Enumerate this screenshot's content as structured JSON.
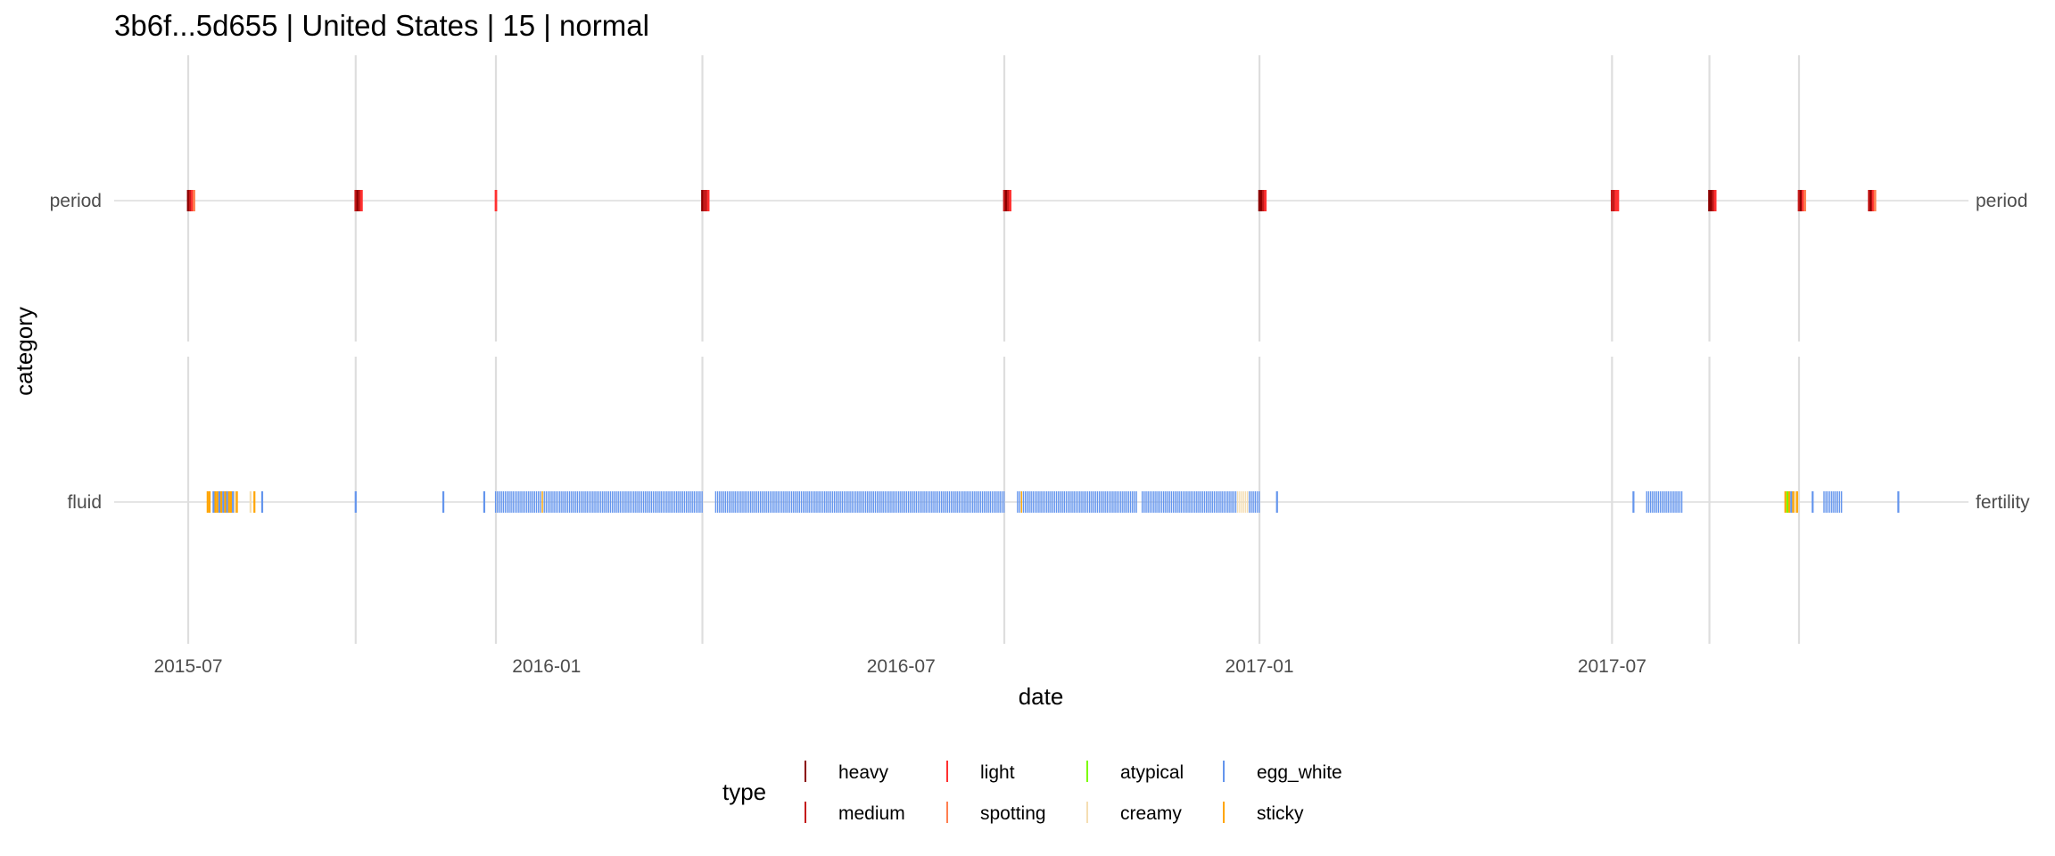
{
  "chart_data": {
    "type": "strip",
    "title": "3b6f...5d655 | United States | 15 | normal",
    "xlabel": "date",
    "ylabel": "category",
    "x_ticks": [
      "2015-07",
      "2016-01",
      "2016-07",
      "2017-01",
      "2017-07"
    ],
    "x_range": [
      "2015-05-24",
      "2017-12-31"
    ],
    "facets": [
      {
        "name": "period",
        "left_label": "period",
        "right_label": "period"
      },
      {
        "name": "fertility",
        "left_label": "fluid",
        "right_label": "fertility"
      }
    ],
    "cycle_starts": [
      "2015-07-01",
      "2015-09-25",
      "2015-12-06",
      "2016-03-21",
      "2016-08-23",
      "2017-01-01",
      "2017-07-01",
      "2017-08-20",
      "2017-10-05"
    ],
    "legend": {
      "title": "type",
      "position": "bottom",
      "entries": [
        {
          "name": "heavy",
          "color": "#8b0000"
        },
        {
          "name": "medium",
          "color": "#c41a1a"
        },
        {
          "name": "light",
          "color": "#ff3030"
        },
        {
          "name": "spotting",
          "color": "#ff7f50"
        },
        {
          "name": "atypical",
          "color": "#7cfc00"
        },
        {
          "name": "creamy",
          "color": "#f5deb3"
        },
        {
          "name": "egg_white",
          "color": "#6495ed"
        },
        {
          "name": "sticky",
          "color": "#ffa500"
        }
      ]
    },
    "period_runs": [
      {
        "start": "2015-07-01",
        "types": [
          "heavy",
          "medium",
          "light",
          "spotting"
        ]
      },
      {
        "start": "2015-09-25",
        "types": [
          "medium",
          "heavy",
          "medium",
          "light"
        ]
      },
      {
        "start": "2015-12-06",
        "types": [
          "light"
        ]
      },
      {
        "start": "2016-03-21",
        "types": [
          "heavy",
          "medium",
          "medium",
          "light"
        ]
      },
      {
        "start": "2016-08-23",
        "types": [
          "medium",
          "heavy",
          "medium",
          "light"
        ]
      },
      {
        "start": "2017-01-01",
        "types": [
          "heavy",
          "heavy",
          "medium",
          "light"
        ]
      },
      {
        "start": "2017-07-01",
        "types": [
          "medium",
          "medium",
          "light",
          "light"
        ]
      },
      {
        "start": "2017-08-20",
        "types": [
          "heavy",
          "heavy",
          "medium",
          "light"
        ]
      },
      {
        "start": "2017-10-05",
        "types": [
          "medium",
          "heavy",
          "light",
          "spotting"
        ]
      },
      {
        "start": "2017-11-10",
        "types": [
          "medium",
          "heavy",
          "light",
          "spotting"
        ]
      }
    ],
    "fluid_obs": [
      {
        "date": "2015-07-11",
        "type": "sticky"
      },
      {
        "date": "2015-07-12",
        "type": "sticky"
      },
      {
        "date": "2015-07-14",
        "type": "egg_white"
      },
      {
        "date": "2015-07-15",
        "type": "sticky"
      },
      {
        "date": "2015-07-16",
        "type": "sticky"
      },
      {
        "date": "2015-07-17",
        "type": "egg_white"
      },
      {
        "date": "2015-07-18",
        "type": "sticky"
      },
      {
        "date": "2015-07-19",
        "type": "egg_white"
      },
      {
        "date": "2015-07-20",
        "type": "sticky"
      },
      {
        "date": "2015-07-21",
        "type": "egg_white"
      },
      {
        "date": "2015-07-22",
        "type": "sticky"
      },
      {
        "date": "2015-07-23",
        "type": "sticky"
      },
      {
        "date": "2015-07-24",
        "type": "egg_white"
      },
      {
        "date": "2015-07-25",
        "type": "creamy"
      },
      {
        "date": "2015-07-26",
        "type": "sticky"
      },
      {
        "date": "2015-08-02",
        "type": "creamy"
      },
      {
        "date": "2015-08-04",
        "type": "sticky"
      },
      {
        "date": "2015-08-08",
        "type": "egg_white"
      },
      {
        "date": "2015-09-25",
        "type": "egg_white"
      },
      {
        "date": "2015-11-09",
        "type": "egg_white"
      },
      {
        "date": "2015-11-30",
        "type": "egg_white"
      },
      {
        "range": [
          "2015-12-06",
          "2016-03-21"
        ],
        "type": "egg_white",
        "sticky_dates": [
          "2015-12-30"
        ]
      },
      {
        "range": [
          "2016-03-28",
          "2016-08-23"
        ],
        "type": "egg_white"
      },
      {
        "range": [
          "2016-08-30",
          "2016-10-30"
        ],
        "type": "egg_white",
        "sticky_dates": [
          "2016-09-01"
        ]
      },
      {
        "range": [
          "2016-11-02",
          "2017-01-01"
        ],
        "type": "egg_white",
        "creamy_dates": [
          "2016-12-21",
          "2016-12-22",
          "2016-12-23",
          "2016-12-24",
          "2016-12-25",
          "2016-12-26"
        ]
      },
      {
        "date": "2017-01-10",
        "type": "egg_white"
      },
      {
        "date": "2017-07-12",
        "type": "egg_white"
      },
      {
        "range": [
          "2017-07-19",
          "2017-08-06"
        ],
        "type": "egg_white"
      },
      {
        "date": "2017-09-28",
        "type": "sticky"
      },
      {
        "date": "2017-09-29",
        "type": "atypical"
      },
      {
        "date": "2017-09-30",
        "type": "sticky"
      },
      {
        "date": "2017-10-01",
        "type": "egg_white"
      },
      {
        "date": "2017-10-02",
        "type": "sticky"
      },
      {
        "date": "2017-10-03",
        "type": "creamy"
      },
      {
        "date": "2017-10-04",
        "type": "sticky"
      },
      {
        "date": "2017-10-12",
        "type": "egg_white"
      },
      {
        "range": [
          "2017-10-18",
          "2017-10-27"
        ],
        "type": "egg_white"
      },
      {
        "date": "2017-11-25",
        "type": "egg_white"
      }
    ]
  }
}
